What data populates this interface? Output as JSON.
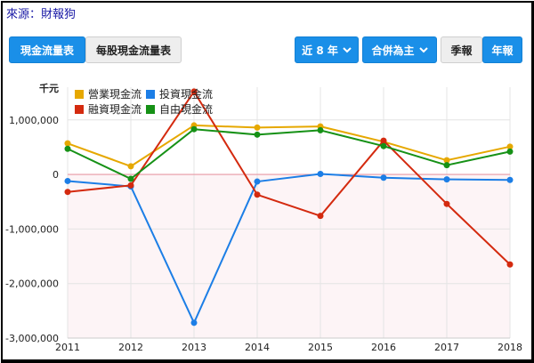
{
  "source_label": "來源：財報狗",
  "tabs": {
    "cash_flow": "現金流量表",
    "per_share": "每股現金流量表"
  },
  "controls": {
    "years": "近 8 年",
    "consolidation": "合併為主",
    "quarterly": "季報",
    "annual": "年報"
  },
  "colors": {
    "operating": "#e6a800",
    "investing": "#1c7ee6",
    "financing": "#d42a0f",
    "free": "#169116",
    "zero_line": "#e99aa6",
    "negative_fill": "#fdf4f6",
    "grid": "#e4e4e4"
  },
  "chart_data": {
    "type": "line",
    "unit_label": "千元",
    "x": [
      "2011",
      "2012",
      "2013",
      "2014",
      "2015",
      "2016",
      "2017",
      "2018"
    ],
    "ylim": [
      -3000000,
      1600000
    ],
    "yticks": [
      {
        "v": 1000000,
        "label": "1,000,000"
      },
      {
        "v": 0,
        "label": "0"
      },
      {
        "v": -1000000,
        "label": "-1,000,000"
      },
      {
        "v": -2000000,
        "label": "-2,000,000"
      },
      {
        "v": -3000000,
        "label": "-3,000,000"
      }
    ],
    "legend_position": "top-left",
    "grid": true,
    "series": [
      {
        "key": "operating",
        "name": "營業現金流",
        "values": [
          570000,
          150000,
          900000,
          860000,
          880000,
          600000,
          260000,
          510000
        ]
      },
      {
        "key": "investing",
        "name": "投資現金流",
        "values": [
          -120000,
          -220000,
          -2720000,
          -130000,
          10000,
          -60000,
          -90000,
          -100000
        ]
      },
      {
        "key": "financing",
        "name": "融資現金流",
        "values": [
          -320000,
          -200000,
          1520000,
          -370000,
          -760000,
          620000,
          -540000,
          -1650000
        ]
      },
      {
        "key": "free",
        "name": "自由現金流",
        "values": [
          470000,
          -80000,
          830000,
          730000,
          810000,
          520000,
          170000,
          420000
        ]
      }
    ]
  }
}
